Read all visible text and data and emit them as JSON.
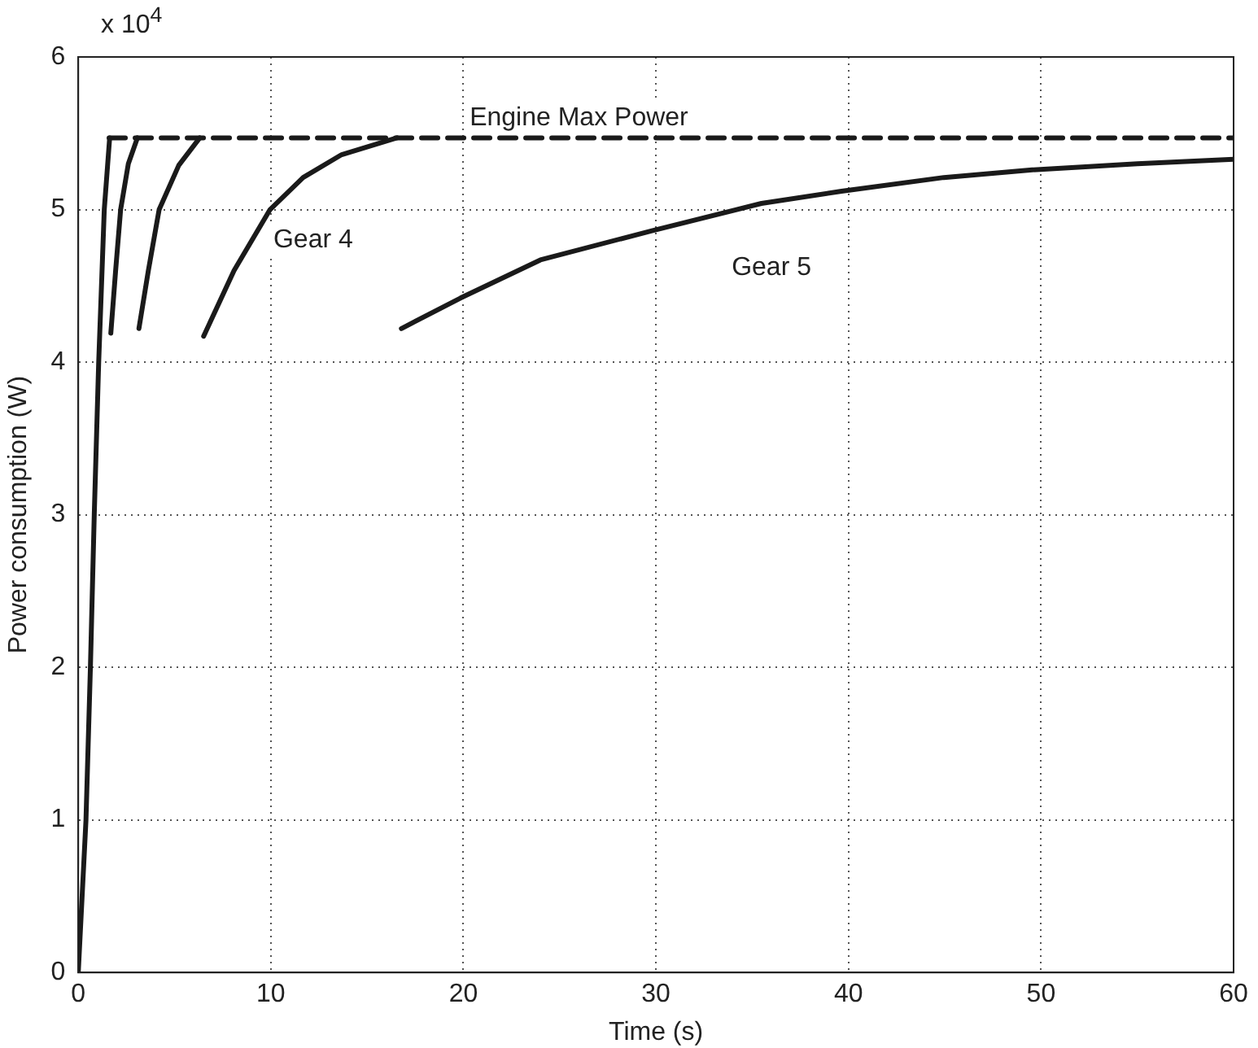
{
  "chart_data": {
    "type": "line",
    "xlabel": "Time (s)",
    "ylabel": "Power consumption (W)",
    "annotations": [
      "x 10$^{4}$"
    ],
    "xlim": [
      0,
      60
    ],
    "xticks": [
      0,
      10,
      20,
      30,
      40,
      50,
      60
    ],
    "ylim": [
      0,
      6
    ],
    "yticks": [
      0,
      1,
      2,
      3,
      4,
      5,
      6
    ],
    "grid": true,
    "legend": false,
    "marker": "none",
    "line_style": "solid",
    "series": [
      {
        "color": "#1a1a1a",
        "x": [
          0,
          0.4,
          0.63,
          0.83,
          1.06,
          1.35,
          1.63
        ],
        "values": [
          0,
          1,
          2,
          3,
          4,
          5,
          5.47
        ]
      },
      {
        "color": "#1a1a1a",
        "x": [
          1.69,
          1.94,
          2.2,
          2.6,
          3.07
        ],
        "values": [
          4.19,
          4.6,
          5,
          5.3,
          5.47
        ]
      },
      {
        "color": "#1a1a1a",
        "x": [
          3.15,
          3.64,
          4.2,
          5.22,
          6.31
        ],
        "values": [
          4.22,
          4.6,
          5,
          5.29,
          5.47
        ]
      },
      {
        "name": "Gear 4",
        "color": "#1a1a1a",
        "x": [
          6.51,
          8.09,
          9.96,
          11.68,
          13.68,
          16.55
        ],
        "values": [
          4.17,
          4.6,
          5,
          5.21,
          5.36,
          5.47
        ]
      },
      {
        "name": "Gear 5",
        "color": "#1a1a1a",
        "x": [
          16.78,
          19.85,
          24,
          29.75,
          35.48,
          39.64,
          44.95,
          49.54,
          55,
          60
        ],
        "values": [
          4.22,
          4.42,
          4.67,
          4.86,
          5.04,
          5.12,
          5.21,
          5.26,
          5.3,
          5.33
        ]
      },
      {
        "name": "Engine Max Power",
        "color": "#1a1a1a",
        "line_style": "dashed",
        "x": [
          1.6,
          60
        ],
        "values": [
          5.47,
          5.47
        ]
      }
    ]
  }
}
